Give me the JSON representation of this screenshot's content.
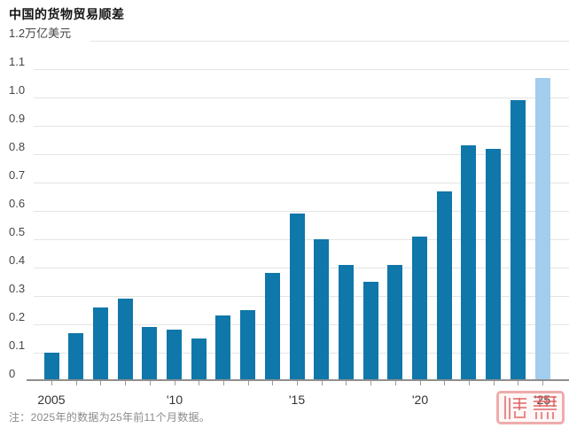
{
  "title": "中国的货物贸易顺差",
  "note": "注：2025年的数据为25年前11个月数据。",
  "watermark": {
    "icon": "seal-stamp-icon",
    "color": "#e06262",
    "description": "semi-transparent red seal-script stamp overlapping the '25 axis label"
  },
  "chart_data": {
    "type": "bar",
    "title": "中国的货物贸易顺差",
    "unit_top_label": "1.2万亿美元",
    "ylabel": "万亿美元",
    "xlabel": "",
    "ylim": [
      0,
      1.2
    ],
    "y_tick_step": 0.1,
    "grid": true,
    "legend": false,
    "y_tick_labels": [
      "0",
      "0.1",
      "0.2",
      "0.3",
      "0.4",
      "0.5",
      "0.6",
      "0.7",
      "0.8",
      "0.9",
      "1.0",
      "1.1",
      "1.2万亿美元"
    ],
    "categories": [
      2005,
      2006,
      2007,
      2008,
      2009,
      2010,
      2011,
      2012,
      2013,
      2014,
      2015,
      2016,
      2017,
      2018,
      2019,
      2020,
      2021,
      2022,
      2023,
      2024,
      2025
    ],
    "values": [
      0.1,
      0.17,
      0.26,
      0.29,
      0.19,
      0.18,
      0.15,
      0.23,
      0.25,
      0.38,
      0.59,
      0.5,
      0.41,
      0.35,
      0.41,
      0.51,
      0.67,
      0.83,
      0.82,
      0.99,
      1.07
    ],
    "highlight_index": 20,
    "x_tick_labels": [
      {
        "index": 0,
        "label": "2005"
      },
      {
        "index": 5,
        "label": "'10"
      },
      {
        "index": 10,
        "label": "'15"
      },
      {
        "index": 15,
        "label": "'20"
      },
      {
        "index": 20,
        "label": "'25"
      }
    ],
    "colors": {
      "bar": "#0f77a9",
      "bar_highlight": "#a2cdec",
      "gridline": "#e4e4e4",
      "axis": "#8f8f8f",
      "tick_label": "#454545",
      "x_label": "#333333",
      "note": "#8a8a8a"
    }
  }
}
